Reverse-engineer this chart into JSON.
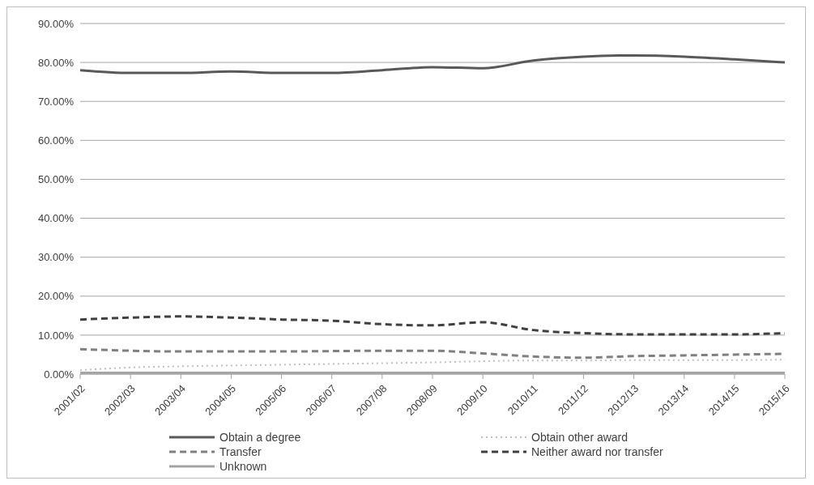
{
  "chart_data": {
    "type": "line",
    "categories": [
      "2001/02",
      "2002/03",
      "2003/04",
      "2004/05",
      "2005/06",
      "2006/07",
      "2007/08",
      "2008/09",
      "2009/10",
      "2010/11",
      "2011/12",
      "2012/13",
      "2013/14",
      "2014/15",
      "2015/16"
    ],
    "series": [
      {
        "name": "Obtain a degree",
        "color": "#595959",
        "line_style": "solid",
        "values": [
          78,
          77.3,
          77.3,
          77.7,
          77.3,
          77.3,
          78,
          78.8,
          78.5,
          80.5,
          81.5,
          81.8,
          81.5,
          80.8,
          80
        ]
      },
      {
        "name": "Obtain other award",
        "color": "#bfbfbf",
        "line_style": "dotted",
        "values": [
          1,
          1.7,
          2,
          2.2,
          2.4,
          2.6,
          2.8,
          3,
          3.3,
          3.5,
          3.5,
          3.6,
          3.6,
          3.6,
          3.7
        ]
      },
      {
        "name": "Transfer",
        "color": "#808080",
        "line_style": "dashed",
        "values": [
          6.4,
          6,
          5.8,
          5.8,
          5.8,
          5.9,
          6,
          6,
          5.3,
          4.5,
          4.2,
          4.6,
          4.8,
          5,
          5.2
        ]
      },
      {
        "name": "Neither award nor transfer",
        "color": "#404040",
        "line_style": "dashed",
        "values": [
          14,
          14.5,
          14.8,
          14.5,
          14,
          13.7,
          12.8,
          12.5,
          13.3,
          11.3,
          10.5,
          10.2,
          10.2,
          10.2,
          10.5
        ]
      },
      {
        "name": "Unknown",
        "color": "#a5a5a5",
        "line_style": "solid",
        "values": [
          0.3,
          0.3,
          0.3,
          0.3,
          0.3,
          0.3,
          0.3,
          0.3,
          0.3,
          0.3,
          0.3,
          0.3,
          0.3,
          0.3,
          0.3
        ]
      }
    ],
    "ylim": [
      0,
      90
    ],
    "yticks": [
      {
        "value": 0,
        "label": "0.00%"
      },
      {
        "value": 10,
        "label": "10.00%"
      },
      {
        "value": 20,
        "label": "20.00%"
      },
      {
        "value": 30,
        "label": "30.00%"
      },
      {
        "value": 40,
        "label": "40.00%"
      },
      {
        "value": 50,
        "label": "50.00%"
      },
      {
        "value": 60,
        "label": "60.00%"
      },
      {
        "value": 70,
        "label": "70.00%"
      },
      {
        "value": 80,
        "label": "80.00%"
      },
      {
        "value": 90,
        "label": "90.00%"
      }
    ],
    "grid": "y",
    "legend": "bottom",
    "marker": "none"
  }
}
